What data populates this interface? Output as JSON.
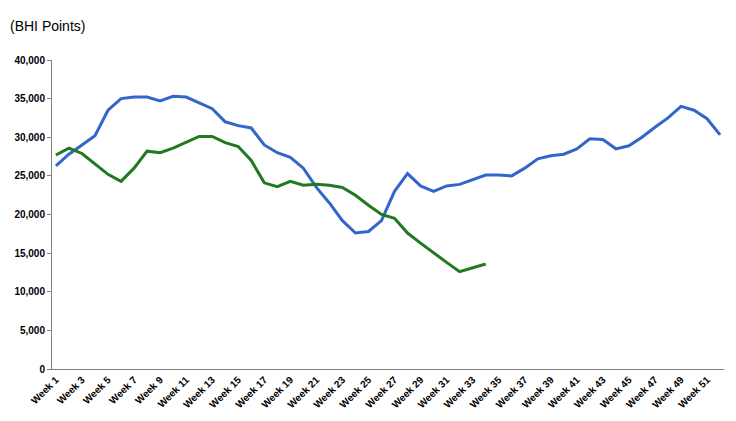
{
  "chart_data": {
    "type": "line",
    "y_label": "(BHI Points)",
    "categories": [
      "Week 1",
      null,
      "Week 3",
      null,
      "Week 5",
      null,
      "Week 7",
      null,
      "Week 9",
      null,
      "Week 11",
      null,
      "Week 13",
      null,
      "Week 15",
      null,
      "Week 17",
      null,
      "Week 19",
      null,
      "Week 21",
      null,
      "Week 23",
      null,
      "Week 25",
      null,
      "Week 27",
      null,
      "Week 29",
      null,
      "Week 31",
      null,
      "Week 33",
      null,
      "Week 35",
      null,
      "Week 37",
      null,
      "Week 39",
      null,
      "Week 41",
      null,
      "Week 43",
      null,
      "Week 45",
      null,
      "Week 47",
      null,
      "Week 49",
      null,
      "Week 51",
      null
    ],
    "series": [
      {
        "color": "#3366cc",
        "values": [
          26300,
          27800,
          29000,
          30200,
          33500,
          35000,
          35200,
          35200,
          34700,
          35300,
          35200,
          34500,
          33700,
          32000,
          31500,
          31200,
          29000,
          28000,
          27400,
          26000,
          23500,
          21500,
          19200,
          17600,
          17800,
          19200,
          23000,
          25300,
          23700,
          23000,
          23700,
          23900,
          24500,
          25100,
          25100,
          25000,
          26000,
          27200,
          27600,
          27800,
          28500,
          29800,
          29700,
          28500,
          28900,
          30000,
          31300,
          32500,
          34000,
          33500,
          32400,
          30300
        ]
      },
      {
        "color": "#1f7a1f",
        "values": [
          27700,
          28600,
          27900,
          26500,
          25200,
          24300,
          26000,
          28200,
          28000,
          28600,
          29300,
          30100,
          30100,
          29300,
          28800,
          27000,
          24100,
          23600,
          24300,
          23800,
          23900,
          23800,
          23500,
          22500,
          21200,
          20000,
          19500,
          17600,
          16300,
          15000,
          13800,
          12600,
          13100,
          13600,
          null,
          null,
          null,
          null,
          null,
          null,
          null,
          null,
          null,
          null,
          null,
          null,
          null,
          null,
          null,
          null,
          null,
          null
        ]
      }
    ],
    "ylim": [
      0,
      40000
    ],
    "yticks": [
      0,
      {
        "value": 5000,
        "label": "5,000"
      },
      {
        "value": 10000,
        "label": "10,000"
      },
      {
        "value": 15000,
        "label": "15,000"
      },
      {
        "value": 20000,
        "label": "20,000"
      },
      {
        "value": 25000,
        "label": "25,000"
      },
      {
        "value": 30000,
        "label": "30,000"
      },
      {
        "value": 35000,
        "label": "35,000"
      },
      {
        "value": 40000,
        "label": "40,000"
      }
    ],
    "grid": false
  }
}
